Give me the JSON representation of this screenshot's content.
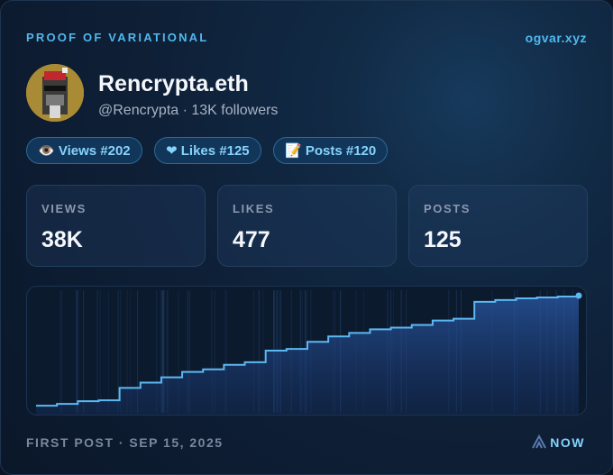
{
  "header": {
    "brand": "PROOF OF VARIATIONAL",
    "site": "ogvar.xyz"
  },
  "profile": {
    "name": "Rencrypta.eth",
    "handle": "@Rencrypta · 13K followers"
  },
  "badges": [
    "👁️ Views #202",
    "❤ Likes #125",
    "📝 Posts #120"
  ],
  "stats": [
    {
      "label": "VIEWS",
      "value": "38K"
    },
    {
      "label": "LIKES",
      "value": "477"
    },
    {
      "label": "POSTS",
      "value": "125"
    }
  ],
  "chart_data": {
    "type": "line",
    "color": "#5cb8f2",
    "values": [
      6,
      8,
      11,
      12,
      26,
      32,
      38,
      44,
      47,
      52,
      55,
      68,
      70,
      78,
      84,
      88,
      92,
      94,
      97,
      102,
      104,
      123,
      125,
      127,
      128,
      129,
      130
    ]
  },
  "footer": {
    "first_post": "FIRST POST · SEP 15, 2025",
    "now": "NOW"
  }
}
